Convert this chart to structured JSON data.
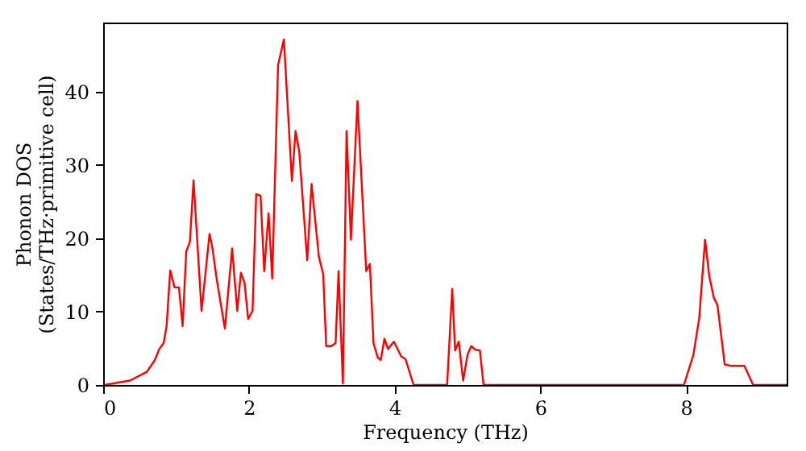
{
  "chart_data": {
    "type": "line",
    "xlabel": "Frequency (THz)",
    "ylabel": "Phonon DOS\n(States/THz·primitive cell)",
    "xlim": [
      0,
      9.38
    ],
    "ylim": [
      0,
      49.4
    ],
    "xticks": [
      0,
      2,
      4,
      6,
      8
    ],
    "yticks": [
      0,
      10,
      20,
      30,
      40
    ],
    "grid": false,
    "marker": "none",
    "line_style": "solid",
    "series": [
      {
        "color": "#ff0000",
        "x": [
          0.02,
          0.37,
          0.6,
          0.71,
          0.77,
          0.83,
          0.87,
          0.92,
          0.98,
          1.04,
          1.09,
          1.14,
          1.19,
          1.24,
          1.35,
          1.46,
          1.5,
          1.56,
          1.67,
          1.77,
          1.84,
          1.89,
          1.94,
          1.99,
          2.05,
          2.1,
          2.16,
          2.21,
          2.27,
          2.32,
          2.4,
          2.48,
          2.59,
          2.64,
          2.69,
          2.8,
          2.86,
          2.96,
          3.02,
          3.06,
          3.13,
          3.19,
          3.23,
          3.29,
          3.34,
          3.4,
          3.49,
          3.61,
          3.66,
          3.71,
          3.77,
          3.81,
          3.86,
          3.91,
          3.99,
          4.09,
          4.15,
          4.26,
          4.72,
          4.79,
          4.83,
          4.88,
          4.94,
          5.0,
          5.05,
          5.11,
          5.17,
          5.22,
          7.97,
          8.1,
          8.18,
          8.26,
          8.32,
          8.38,
          8.43,
          8.53,
          8.62,
          8.8,
          8.92,
          9.38
        ],
        "values": [
          0,
          0.6,
          1.8,
          3.4,
          4.9,
          5.7,
          8.0,
          15.6,
          13.3,
          13.3,
          8.0,
          18.2,
          19.5,
          27.9,
          10.1,
          20.6,
          18.6,
          14.3,
          7.7,
          18.6,
          10.1,
          15.3,
          13.9,
          9.0,
          10.1,
          26.0,
          25.8,
          15.5,
          23.4,
          14.5,
          43.6,
          47.1,
          27.8,
          34.6,
          31.9,
          17.0,
          27.4,
          17.5,
          15.1,
          5.3,
          5.3,
          5.7,
          15.5,
          0.2,
          34.6,
          19.8,
          38.7,
          15.5,
          16.5,
          5.7,
          3.7,
          3.4,
          6.3,
          4.9,
          5.9,
          3.9,
          3.5,
          0,
          0,
          13.1,
          4.7,
          5.9,
          0.6,
          4.1,
          5.3,
          4.8,
          4.7,
          0,
          0,
          4.1,
          9.1,
          19.8,
          14.7,
          11.9,
          10.9,
          2.8,
          2.6,
          2.6,
          0,
          0
        ]
      }
    ]
  }
}
